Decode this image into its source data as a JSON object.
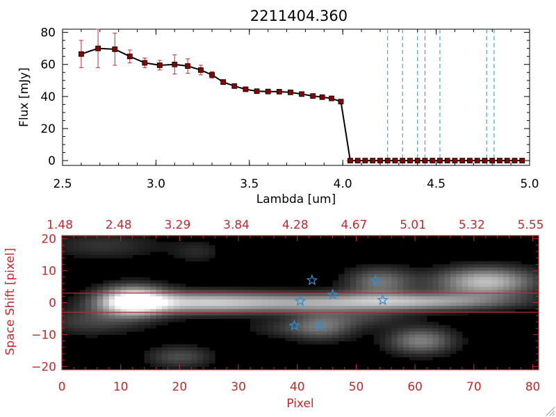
{
  "chart_data": [
    {
      "type": "line",
      "title": "2211404.360",
      "xlabel": "Lambda [um]",
      "ylabel": "Flux [mJy]",
      "xlim": [
        2.5,
        5.0
      ],
      "ylim": [
        -3,
        82
      ],
      "xticks": [
        2.5,
        3.0,
        3.5,
        4.0,
        4.5,
        5.0
      ],
      "xtick_labels": [
        "2.5",
        "3.0",
        "3.5",
        "4.0",
        "4.5",
        "5.0"
      ],
      "yticks": [
        0,
        20,
        40,
        60,
        80
      ],
      "ytick_labels": [
        "0",
        "20",
        "40",
        "60",
        "80"
      ],
      "series": [
        {
          "name": "flux",
          "color": "#000000",
          "marker_color": "#8b0000",
          "errorbar_color": "#c8262b",
          "x": [
            2.6,
            2.69,
            2.78,
            2.86,
            2.94,
            3.02,
            3.1,
            3.17,
            3.24,
            3.3,
            3.36,
            3.42,
            3.48,
            3.54,
            3.6,
            3.66,
            3.72,
            3.78,
            3.84,
            3.89,
            3.94,
            3.99,
            4.04,
            4.08,
            4.12,
            4.16,
            4.2,
            4.24,
            4.28,
            4.32,
            4.36,
            4.4,
            4.44,
            4.48,
            4.52,
            4.56,
            4.6,
            4.64,
            4.68,
            4.72,
            4.76,
            4.8,
            4.84,
            4.88,
            4.92,
            4.96
          ],
          "y": [
            66.5,
            70,
            69.5,
            65,
            61,
            59.5,
            60,
            59,
            56.5,
            53.5,
            49,
            46.5,
            44.5,
            43.3,
            43.1,
            43,
            42.6,
            41.5,
            40.3,
            39.6,
            38.8,
            36.8,
            0,
            0,
            0,
            0,
            0,
            0,
            0,
            0,
            0,
            0,
            0,
            0,
            0,
            0,
            0,
            0,
            0,
            0,
            0,
            0,
            0,
            0,
            0,
            0
          ],
          "yerr": [
            8.5,
            12,
            10,
            4,
            3,
            3,
            6,
            4.5,
            3,
            2,
            1.5,
            1,
            0.6,
            0.5,
            0.5,
            0.5,
            0.5,
            0.6,
            0.6,
            0.6,
            0.6,
            0.6,
            0,
            0,
            0,
            0,
            0,
            0,
            0,
            0,
            0,
            0,
            0,
            0,
            0,
            0,
            0,
            0,
            0,
            0,
            0,
            0,
            0,
            0,
            0,
            0
          ]
        }
      ],
      "reference_lines": {
        "orientation": "vertical",
        "style": "dashed",
        "color": "#2a8fd6",
        "x": [
          4.24,
          4.32,
          4.4,
          4.44,
          4.52,
          4.77,
          4.81
        ]
      },
      "zero_line": {
        "y": 0,
        "style": "dashed",
        "color": "#c8262b"
      }
    },
    {
      "type": "heatmap",
      "colormap": "grayscale",
      "xlabel": "Pixel",
      "ylabel": "Space Shift [pixel]",
      "axis_color": "#c8262b",
      "xlim": [
        0,
        81
      ],
      "ylim": [
        -21,
        21
      ],
      "xticks": [
        0,
        10,
        20,
        30,
        40,
        50,
        60,
        70,
        80
      ],
      "xtick_labels": [
        "0",
        "10",
        "20",
        "30",
        "40",
        "50",
        "60",
        "70",
        "80"
      ],
      "yticks": [
        -20,
        -10,
        0,
        10,
        20
      ],
      "ytick_labels": [
        "−20",
        "−10",
        "0",
        "10",
        "20"
      ],
      "top_axis": {
        "label_pixels": [
          0,
          10,
          20,
          30,
          40,
          50,
          60,
          70,
          80
        ],
        "labels": [
          "1.48",
          "2.48",
          "3.29",
          "3.84",
          "4.28",
          "4.67",
          "5.01",
          "5.32",
          "5.55"
        ]
      },
      "horizontal_lines": {
        "y": [
          3,
          -3
        ],
        "color": "#c8262b"
      },
      "blobs": [
        {
          "x": 12,
          "y": 0.5,
          "sx": 4,
          "sy": 3.2,
          "v": 1.0
        },
        {
          "x": 22,
          "y": 0,
          "sx": 9,
          "sy": 2.5,
          "v": 0.55
        },
        {
          "x": 42,
          "y": 0,
          "sx": 15,
          "sy": 2.2,
          "v": 0.55
        },
        {
          "x": 62,
          "y": 0.3,
          "sx": 11,
          "sy": 1.8,
          "v": 0.45
        },
        {
          "x": 72,
          "y": 6.5,
          "sx": 6,
          "sy": 3.2,
          "v": 0.75
        },
        {
          "x": 54,
          "y": 6.5,
          "sx": 4,
          "sy": 3.2,
          "v": 0.45
        },
        {
          "x": 61,
          "y": -12,
          "sx": 4,
          "sy": 3,
          "v": 0.5
        },
        {
          "x": 44,
          "y": -7.5,
          "sx": 4,
          "sy": 3,
          "v": 0.45
        },
        {
          "x": 20,
          "y": -17,
          "sx": 4,
          "sy": 2.5,
          "v": 0.3
        },
        {
          "x": 5,
          "y": -6,
          "sx": 6,
          "sy": 3,
          "v": 0.25
        },
        {
          "x": 7,
          "y": 18,
          "sx": 7,
          "sy": 3,
          "v": 0.2
        },
        {
          "x": 23,
          "y": 16,
          "sx": 3,
          "sy": 2.5,
          "v": 0.15
        },
        {
          "x": 52,
          "y": -5,
          "sx": 5,
          "sy": 2,
          "v": 0.18
        },
        {
          "x": 36,
          "y": -8,
          "sx": 4,
          "sy": 2,
          "v": 0.12
        }
      ],
      "star_markers": {
        "color": "#2a8fd6",
        "points": [
          {
            "x": 42.5,
            "y": 7
          },
          {
            "x": 53.3,
            "y": 6.8
          },
          {
            "x": 46,
            "y": 2.5
          },
          {
            "x": 40.5,
            "y": 0.5
          },
          {
            "x": 54.5,
            "y": 0.8
          },
          {
            "x": 39.5,
            "y": -7.2
          },
          {
            "x": 43.8,
            "y": -7.2
          }
        ]
      }
    }
  ]
}
